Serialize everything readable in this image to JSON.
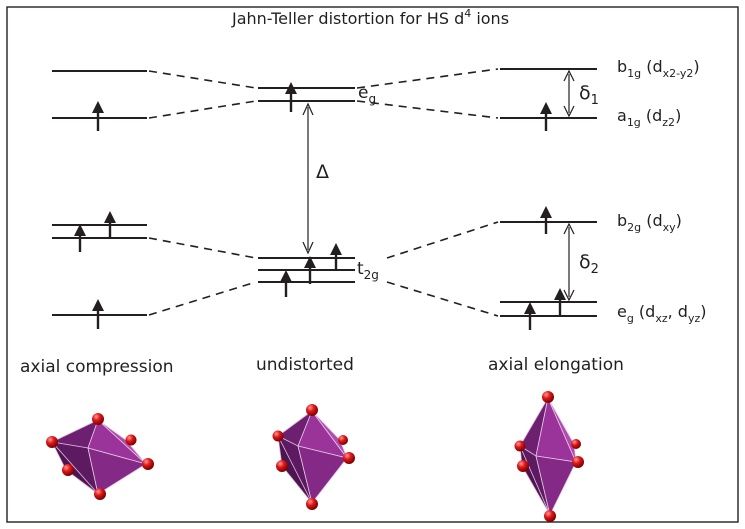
{
  "title": {
    "main": "Jahn-Teller distortion for HS d",
    "sup": "4",
    "tail": " ions"
  },
  "undistorted": {
    "eg_label": {
      "main": "e",
      "sub": "g"
    },
    "t2g_label": {
      "main": "t",
      "sub": "2g"
    },
    "gap_label": "Δ",
    "caption": "undistorted"
  },
  "compression": {
    "caption": "axial compression"
  },
  "elongation": {
    "caption": "axial elongation",
    "delta1": {
      "main": "δ",
      "sub": "1"
    },
    "delta2": {
      "main": "δ",
      "sub": "2"
    },
    "b1g": {
      "term": "b",
      "term_sub": "1g",
      "orb_open": " (d",
      "orb_sub": "x2-y2",
      "orb_close": ")"
    },
    "a1g": {
      "term": "a",
      "term_sub": "1g",
      "orb_open": " (d",
      "orb_sub": "z2",
      "orb_close": ")"
    },
    "b2g": {
      "term": "b",
      "term_sub": "2g",
      "orb_open": " (d",
      "orb_sub": "xy",
      "orb_close": ")"
    },
    "eg": {
      "term": "e",
      "term_sub": "g",
      "orb_open": " (d",
      "orb_sub": "xz",
      "orb_mid": ", d",
      "orb_sub2": "yz",
      "orb_close": ")"
    }
  },
  "colors": {
    "ink": "#231f20",
    "octahedron": "#8e2a8c",
    "octahedron_light": "#b34fb0",
    "octahedron_dark": "#5e1a5e",
    "ligand": "#d21f1f"
  }
}
